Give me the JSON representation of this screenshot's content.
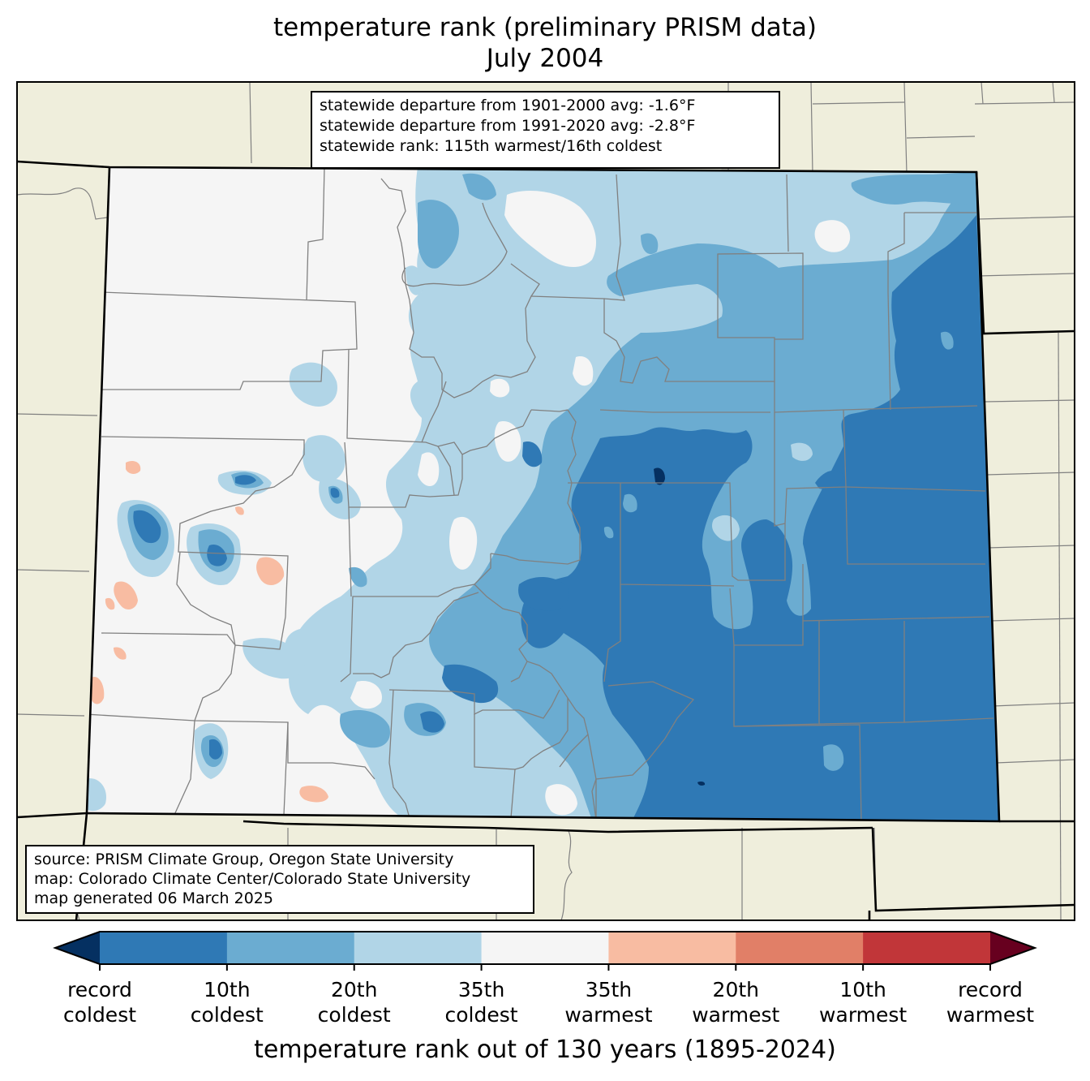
{
  "title": {
    "line1": "temperature rank (preliminary PRISM data)",
    "line2": "July 2004"
  },
  "stats_box": {
    "line1": "statewide departure from 1901-2000 avg: -1.6°F",
    "line2": "statewide departure from 1991-2020 avg: -2.8°F",
    "line3": "statewide rank: 115th warmest/16th coldest"
  },
  "source_box": {
    "line1": "source: PRISM Climate Group, Oregon State University",
    "line2": "map: Colorado Climate Center/Colorado State University",
    "line3": "map generated 06 March 2025"
  },
  "colorbar": {
    "label": "temperature rank out of 130 years (1895-2024)",
    "colors": {
      "below_min": "#053061",
      "bins": [
        "#2f79b5",
        "#6bacd1",
        "#b1d5e7",
        "#f5f5f5",
        "#f8bca2",
        "#e17f67",
        "#c13639"
      ],
      "above_max": "#67001f"
    },
    "ticks": [
      {
        "line1": "record",
        "line2": "coldest"
      },
      {
        "line1": "10th",
        "line2": "coldest"
      },
      {
        "line1": "20th",
        "line2": "coldest"
      },
      {
        "line1": "35th",
        "line2": "coldest"
      },
      {
        "line1": "35th",
        "line2": "warmest"
      },
      {
        "line1": "20th",
        "line2": "warmest"
      },
      {
        "line1": "10th",
        "line2": "warmest"
      },
      {
        "line1": "record",
        "line2": "warmest"
      }
    ]
  },
  "map_colors": {
    "neighbor_land": "#efeedc",
    "county_line": "#808080",
    "state_line": "#000000"
  }
}
